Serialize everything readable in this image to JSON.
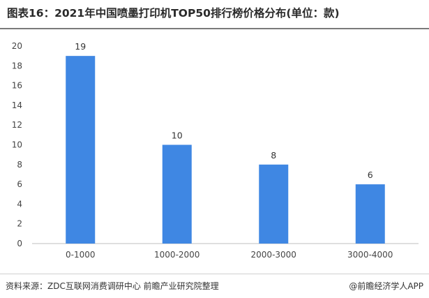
{
  "header": {
    "title": "图表16：2021年中国喷墨打印机TOP50排行榜价格分布(单位：款)"
  },
  "chart_data": {
    "type": "bar",
    "title": "图表16：2021年中国喷墨打印机TOP50排行榜价格分布(单位：款)",
    "categories": [
      "0-1000",
      "1000-2000",
      "2000-3000",
      "3000-4000"
    ],
    "values": [
      19,
      10,
      8,
      6
    ],
    "yticks": [
      0,
      2,
      4,
      6,
      8,
      10,
      12,
      14,
      16,
      18,
      20
    ],
    "ylim": [
      0,
      20
    ],
    "xlabel": "",
    "ylabel": "",
    "grid": false,
    "bar_color": "#3f87e3",
    "axis_color": "#bfbfbf"
  },
  "footer": {
    "source": "资料来源：ZDC互联网消费调研中心 前瞻产业研究院整理",
    "brand": "@前瞻经济学人APP"
  }
}
